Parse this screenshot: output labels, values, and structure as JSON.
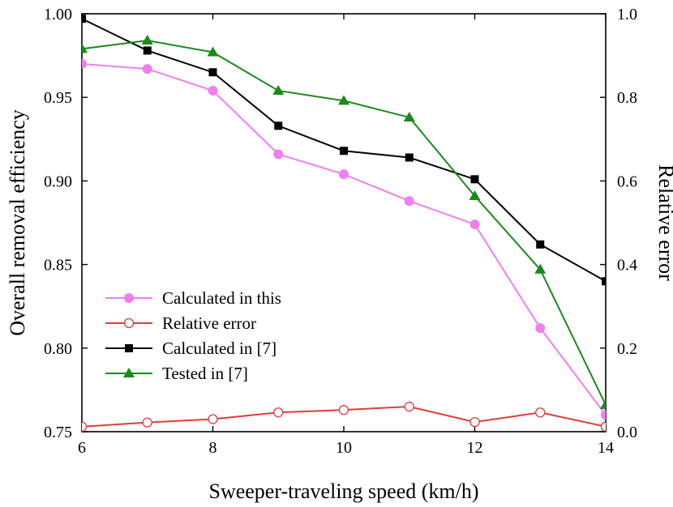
{
  "chart_data": {
    "type": "line",
    "xlabel": "Sweeper-traveling speed (km/h)",
    "ylabel_left": "Overall removal efficiency",
    "ylabel_right": "Relative error",
    "xlim": [
      6,
      14
    ],
    "ylim_left": [
      0.75,
      1.0
    ],
    "ylim_right": [
      0.0,
      1.0
    ],
    "x_ticks": [
      "6",
      "8",
      "10",
      "12",
      "14"
    ],
    "y_left_ticks": [
      "0.75",
      "0.80",
      "0.85",
      "0.90",
      "0.95",
      "1.00"
    ],
    "y_right_ticks": [
      "0.0",
      "0.2",
      "0.4",
      "0.6",
      "0.8",
      "1.0"
    ],
    "legend_position": "lower-left",
    "series": [
      {
        "name": "Calculated in this",
        "axis": "left",
        "color": "#f07ef0",
        "marker": "circle-filled",
        "x": [
          6,
          7,
          8,
          9,
          10,
          11,
          12,
          13,
          14
        ],
        "values": [
          0.97,
          0.967,
          0.954,
          0.916,
          0.904,
          0.888,
          0.874,
          0.812,
          0.76
        ]
      },
      {
        "name": "Relative error",
        "axis": "right",
        "color": "#e03c3c",
        "marker": "circle-open",
        "x": [
          6,
          7,
          8,
          9,
          10,
          11,
          12,
          13,
          14
        ],
        "values": [
          0.012,
          0.022,
          0.03,
          0.046,
          0.052,
          0.06,
          0.023,
          0.046,
          0.012
        ]
      },
      {
        "name": "Calculated in [7]",
        "axis": "left",
        "color": "#000000",
        "marker": "square-filled",
        "x": [
          6,
          7,
          8,
          9,
          10,
          11,
          12,
          13,
          14
        ],
        "values": [
          0.997,
          0.978,
          0.965,
          0.933,
          0.918,
          0.914,
          0.901,
          0.862,
          0.84
        ]
      },
      {
        "name": "Tested in [7]",
        "axis": "left",
        "color": "#1a8a1a",
        "marker": "triangle-filled",
        "x": [
          6,
          7,
          8,
          9,
          10,
          11,
          12,
          13,
          14
        ],
        "values": [
          0.979,
          0.984,
          0.977,
          0.954,
          0.948,
          0.938,
          0.891,
          0.847,
          0.766
        ]
      }
    ]
  }
}
